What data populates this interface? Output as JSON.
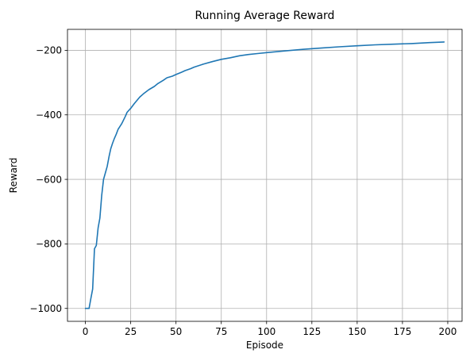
{
  "chart_data": {
    "type": "line",
    "title": "Running Average Reward",
    "xlabel": "Episode",
    "ylabel": "Reward",
    "xlim": [
      -9.9,
      207.9
    ],
    "ylim": [
      -1040,
      -135
    ],
    "xticks": [
      0,
      25,
      50,
      75,
      100,
      125,
      150,
      175,
      200
    ],
    "yticks": [
      -1000,
      -800,
      -600,
      -400,
      -200
    ],
    "grid": true,
    "line_color": "#1f77b4",
    "series": [
      {
        "x": [
          0,
          2,
          3,
          4,
          5,
          6,
          7,
          8,
          9,
          10,
          11,
          12,
          13,
          14,
          15,
          16,
          17,
          18,
          20,
          22,
          23,
          25,
          27,
          30,
          32,
          35,
          38,
          40,
          43,
          45,
          48,
          50,
          53,
          55,
          58,
          60,
          65,
          70,
          75,
          80,
          85,
          90,
          95,
          100,
          110,
          120,
          130,
          140,
          150,
          160,
          170,
          180,
          190,
          198
        ],
        "y": [
          -1000,
          -1000,
          -970,
          -940,
          -815,
          -805,
          -750,
          -720,
          -650,
          -600,
          -580,
          -560,
          -530,
          -505,
          -488,
          -473,
          -460,
          -445,
          -428,
          -405,
          -392,
          -380,
          -365,
          -345,
          -335,
          -322,
          -312,
          -303,
          -293,
          -285,
          -280,
          -275,
          -268,
          -263,
          -257,
          -252,
          -243,
          -235,
          -228,
          -223,
          -217,
          -213,
          -210,
          -207,
          -202,
          -197,
          -193,
          -189,
          -186,
          -183,
          -181,
          -179,
          -176,
          -174
        ]
      }
    ]
  }
}
